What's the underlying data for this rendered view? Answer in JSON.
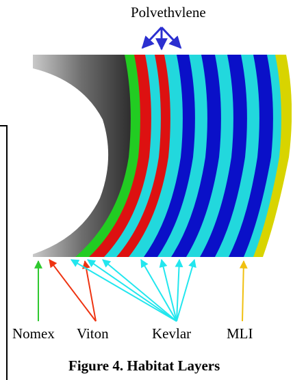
{
  "labels": {
    "top": "Polvethvlene",
    "nomex": "Nomex",
    "viton": "Viton",
    "kevlar": "Kevlar",
    "mli": "MLI"
  },
  "caption": "Figure 4. Habitat Layers",
  "colors": {
    "nomex": "#22cc22",
    "viton": "#dd1111",
    "kevlar": "#22d8dd",
    "polyethylene": "#0a10c8",
    "mli": "#d8d400",
    "arrow_top": "#2b2fd0",
    "arrow_nomex": "#2ec82e",
    "arrow_viton": "#ee3311",
    "arrow_kevlar": "#22e6ee",
    "arrow_mli": "#f0c010"
  }
}
